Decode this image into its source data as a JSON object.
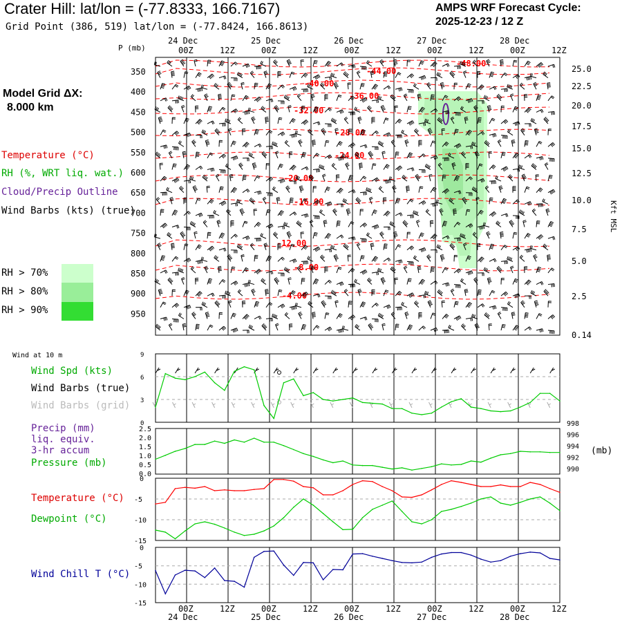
{
  "header": {
    "title": "Crater Hill:  lat/lon = (-77.8333, 166.7167)",
    "subtitle": "Grid Point (386, 519) lat/lon = (-77.8424, 166.8613)",
    "forecast_label": "AMPS WRF Forecast Cycle:",
    "forecast_cycle": "2025-12-23 / 12  Z",
    "model_grid_label": "Model Grid ΔX:",
    "model_grid_value": "8.000 km"
  },
  "legend_upper": {
    "temperature": "Temperature (°C)",
    "rh": "RH (%, WRT liq. wat.)",
    "cloud": "Cloud/Precip Outline",
    "wind": "Wind Barbs (kts) (true)",
    "rh_levels": [
      {
        "label": "RH > 70%",
        "color": "#ccffcc"
      },
      {
        "label": "RH > 80%",
        "color": "#99ee99"
      },
      {
        "label": "RH > 90%",
        "color": "#33dd33"
      }
    ]
  },
  "colors": {
    "temperature": "#ff0000",
    "rh": "#00cc00",
    "cloud": "#662299",
    "wind_chill": "#000099",
    "grid_barbs": "#aaaaaa"
  },
  "chart_data": [
    {
      "type": "heatmap",
      "name": "time-height cross section",
      "x_time_labels": [
        "00Z",
        "12Z",
        "00Z",
        "12Z",
        "00Z",
        "12Z",
        "00Z",
        "12Z",
        "00Z",
        "12Z"
      ],
      "x_date_labels": [
        "24 Dec",
        "25 Dec",
        "26 Dec",
        "27 Dec",
        "28 Dec"
      ],
      "ylabel": "P (mb)",
      "pressure_ticks": [
        "350",
        "400",
        "450",
        "500",
        "550",
        "600",
        "650",
        "700",
        "750",
        "800",
        "850",
        "900",
        "950"
      ],
      "ylabel_right": "Kft MSL",
      "height_ticks": [
        "25.0",
        "22.5",
        "20.0",
        "17.5",
        "15.0",
        "12.5",
        "10.0",
        "7.5",
        "5.0",
        "2.5",
        "0.14"
      ],
      "isotherm_labels": [
        "-48.00",
        "-44.00",
        "-40.00",
        "-36.00",
        "-32.00",
        "-28.00",
        "-24.00",
        "-20.00",
        "-16.00",
        "-12.00",
        "-8.00",
        "-4.00"
      ]
    },
    {
      "type": "line",
      "title": "Wind at 10 m",
      "legend": [
        "Wind Spd (kts)",
        "Wind Barbs (true)",
        "Wind Barbs (grid)"
      ],
      "ylim": [
        0,
        9
      ],
      "y_ticks": [
        "0",
        "3",
        "6",
        "9"
      ],
      "series": [
        {
          "name": "Wind Spd (kts)",
          "values": [
            2.0,
            6.4,
            5.8,
            5.6,
            6.0,
            6.6,
            5.2,
            4.2,
            6.7,
            7.3,
            6.9,
            2.2,
            0.5,
            5.2,
            5.7,
            3.5,
            3.9,
            3.0,
            2.8,
            3.0,
            3.2,
            2.6,
            2.5,
            2.4,
            1.8,
            1.8,
            1.2,
            1.0,
            1.2,
            2.0,
            2.7,
            3.1,
            2.0,
            1.8,
            1.5,
            1.4,
            1.5,
            2.0,
            2.6,
            3.8,
            3.8,
            2.8
          ]
        }
      ]
    },
    {
      "type": "line",
      "legend": [
        "Precip (mm)",
        "liq. equiv.",
        "3-hr accum",
        "Pressure (mb)"
      ],
      "ylim_precip": [
        0,
        2.5
      ],
      "precip_ticks": [
        "2.5",
        "2.0",
        "1.5",
        "1.0",
        "0.5",
        "0.0"
      ],
      "ylim_pressure": [
        990,
        998
      ],
      "pressure_ticks": [
        "998",
        "996",
        "994",
        "992",
        "990"
      ],
      "right_unit": "(mb)",
      "series": [
        {
          "name": "Pressure (mb)",
          "values": [
            992.6,
            993.3,
            994.0,
            994.5,
            995.2,
            995.2,
            995.8,
            995.4,
            996.0,
            995.6,
            996.3,
            995.6,
            995.6,
            995.0,
            994.3,
            993.6,
            993.1,
            992.5,
            992.0,
            992.3,
            991.6,
            991.5,
            991.5,
            991.2,
            990.9,
            991.1,
            990.7,
            991.0,
            991.3,
            991.8,
            991.6,
            991.7,
            992.3,
            992.1,
            992.8,
            993.4,
            993.6,
            994.0,
            993.9,
            993.9,
            993.8,
            993.8
          ]
        }
      ]
    },
    {
      "type": "line",
      "legend": [
        "Temperature (°C)",
        "Dewpoint (°C)"
      ],
      "ylim": [
        -15,
        0
      ],
      "y_ticks": [
        "0",
        "-5",
        "-10",
        "-15"
      ],
      "series": [
        {
          "name": "Temperature (°C)",
          "values": [
            -6.2,
            -5.8,
            -2.5,
            -2.2,
            -2.4,
            -2.0,
            -3.0,
            -2.8,
            -3.0,
            -3.0,
            -2.7,
            -2.5,
            -0.3,
            -0.3,
            -0.7,
            -2.0,
            -2.3,
            -4.0,
            -4.0,
            -3.0,
            -1.5,
            -0.6,
            -0.8,
            -2.0,
            -3.0,
            -4.5,
            -4.6,
            -4.0,
            -2.8,
            -1.5,
            -0.6,
            -1.0,
            -1.5,
            -2.0,
            -2.0,
            -1.6,
            -2.0,
            -2.0,
            -1.0,
            -1.5,
            -2.5,
            -3.4
          ]
        },
        {
          "name": "Dewpoint (°C)",
          "values": [
            -12.5,
            -13.0,
            -14.6,
            -12.7,
            -11.0,
            -10.5,
            -11.1,
            -12.0,
            -13.0,
            -13.8,
            -13.5,
            -12.7,
            -11.5,
            -9.5,
            -7.0,
            -5.0,
            -6.5,
            -8.5,
            -10.5,
            -12.4,
            -12.3,
            -9.5,
            -7.5,
            -6.5,
            -5.5,
            -8.0,
            -10.5,
            -11.0,
            -10.0,
            -8.0,
            -7.5,
            -6.8,
            -6.0,
            -5.0,
            -4.5,
            -6.0,
            -6.5,
            -5.8,
            -5.0,
            -4.5,
            -6.0,
            -7.8
          ]
        }
      ]
    },
    {
      "type": "line",
      "legend": [
        "Wind Chill T (°C)"
      ],
      "ylim": [
        -15,
        0
      ],
      "y_ticks": [
        "0",
        "-5",
        "-10",
        "-15"
      ],
      "series": [
        {
          "name": "Wind Chill T (°C)",
          "values": [
            -6.3,
            -12.6,
            -7.5,
            -6.2,
            -6.4,
            -8.2,
            -5.6,
            -9.0,
            -9.2,
            -10.8,
            -2.7,
            -1.1,
            -1.0,
            -4.8,
            -7.6,
            -4.1,
            -4.2,
            -8.8,
            -6.0,
            -6.1,
            -1.8,
            -1.7,
            -2.4,
            -3.0,
            -3.6,
            -4.1,
            -4.2,
            -4.0,
            -2.7,
            -1.8,
            -1.4,
            -1.4,
            -2.1,
            -3.2,
            -4.0,
            -3.6,
            -2.4,
            -1.7,
            -1.3,
            -1.5,
            -3.0,
            -3.4
          ]
        }
      ]
    }
  ]
}
